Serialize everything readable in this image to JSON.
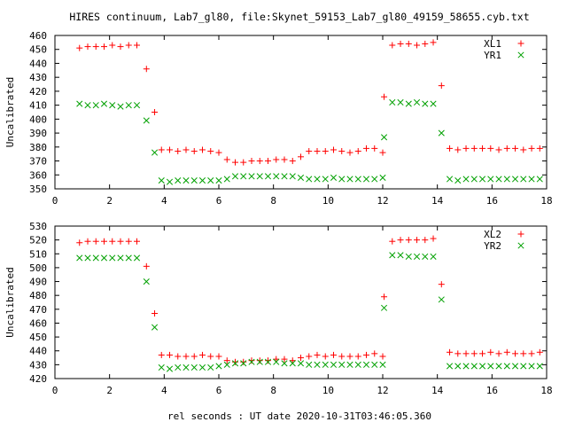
{
  "title": "HIRES continuum, Lab7_gl80, file:Skynet_59153_Lab7_gl80_49159_58655.cyb.txt",
  "xlabel": "rel seconds : UT date 2020-10-31T03:46:05.360",
  "colors": {
    "red_series": "#ff0000",
    "green_series": "#00a000",
    "axis": "#000000"
  },
  "chart_data": [
    {
      "type": "scatter",
      "ylabel": "Uncalibrated",
      "xlim": [
        0,
        18
      ],
      "ylim": [
        350,
        460
      ],
      "xticks": [
        0,
        2,
        4,
        6,
        8,
        10,
        12,
        14,
        16,
        18
      ],
      "yticks": [
        350,
        360,
        370,
        380,
        390,
        400,
        410,
        420,
        430,
        440,
        450,
        460
      ],
      "legend_position": "top-right",
      "series": [
        {
          "name": "XL1",
          "marker": "plus",
          "color": "#ff0000",
          "points": [
            [
              0.9,
              451
            ],
            [
              1.2,
              452
            ],
            [
              1.5,
              452
            ],
            [
              1.8,
              452
            ],
            [
              2.1,
              453
            ],
            [
              2.4,
              452
            ],
            [
              2.7,
              453
            ],
            [
              3.0,
              453
            ],
            [
              3.35,
              436
            ],
            [
              3.65,
              405
            ],
            [
              3.9,
              378
            ],
            [
              4.2,
              378
            ],
            [
              4.5,
              377
            ],
            [
              4.8,
              378
            ],
            [
              5.1,
              377
            ],
            [
              5.4,
              378
            ],
            [
              5.7,
              377
            ],
            [
              6.0,
              376
            ],
            [
              6.3,
              371
            ],
            [
              6.6,
              369
            ],
            [
              6.9,
              369
            ],
            [
              7.2,
              370
            ],
            [
              7.5,
              370
            ],
            [
              7.8,
              370
            ],
            [
              8.1,
              371
            ],
            [
              8.4,
              371
            ],
            [
              8.7,
              370
            ],
            [
              9.0,
              373
            ],
            [
              9.3,
              377
            ],
            [
              9.6,
              377
            ],
            [
              9.9,
              377
            ],
            [
              10.2,
              378
            ],
            [
              10.5,
              377
            ],
            [
              10.8,
              376
            ],
            [
              11.1,
              377
            ],
            [
              11.4,
              379
            ],
            [
              11.7,
              379
            ],
            [
              12.0,
              376
            ],
            [
              12.05,
              416
            ],
            [
              12.35,
              453
            ],
            [
              12.65,
              454
            ],
            [
              12.95,
              454
            ],
            [
              13.25,
              453
            ],
            [
              13.55,
              454
            ],
            [
              13.85,
              455
            ],
            [
              14.15,
              424
            ],
            [
              14.45,
              379
            ],
            [
              14.75,
              378
            ],
            [
              15.05,
              379
            ],
            [
              15.35,
              379
            ],
            [
              15.65,
              379
            ],
            [
              15.95,
              379
            ],
            [
              16.25,
              378
            ],
            [
              16.55,
              379
            ],
            [
              16.85,
              379
            ],
            [
              17.15,
              378
            ],
            [
              17.45,
              379
            ],
            [
              17.75,
              379
            ]
          ]
        },
        {
          "name": "YR1",
          "marker": "cross",
          "color": "#00a000",
          "points": [
            [
              0.9,
              411
            ],
            [
              1.2,
              410
            ],
            [
              1.5,
              410
            ],
            [
              1.8,
              411
            ],
            [
              2.1,
              410
            ],
            [
              2.4,
              409
            ],
            [
              2.7,
              410
            ],
            [
              3.0,
              410
            ],
            [
              3.35,
              399
            ],
            [
              3.65,
              376
            ],
            [
              3.9,
              356
            ],
            [
              4.2,
              355
            ],
            [
              4.5,
              356
            ],
            [
              4.8,
              356
            ],
            [
              5.1,
              356
            ],
            [
              5.4,
              356
            ],
            [
              5.7,
              356
            ],
            [
              6.0,
              356
            ],
            [
              6.3,
              357
            ],
            [
              6.6,
              359
            ],
            [
              6.9,
              359
            ],
            [
              7.2,
              359
            ],
            [
              7.5,
              359
            ],
            [
              7.8,
              359
            ],
            [
              8.1,
              359
            ],
            [
              8.4,
              359
            ],
            [
              8.7,
              359
            ],
            [
              9.0,
              358
            ],
            [
              9.3,
              357
            ],
            [
              9.6,
              357
            ],
            [
              9.9,
              357
            ],
            [
              10.2,
              358
            ],
            [
              10.5,
              357
            ],
            [
              10.8,
              357
            ],
            [
              11.1,
              357
            ],
            [
              11.4,
              357
            ],
            [
              11.7,
              357
            ],
            [
              12.0,
              358
            ],
            [
              12.05,
              387
            ],
            [
              12.35,
              412
            ],
            [
              12.65,
              412
            ],
            [
              12.95,
              411
            ],
            [
              13.25,
              412
            ],
            [
              13.55,
              411
            ],
            [
              13.85,
              411
            ],
            [
              14.15,
              390
            ],
            [
              14.45,
              357
            ],
            [
              14.75,
              356
            ],
            [
              15.05,
              357
            ],
            [
              15.35,
              357
            ],
            [
              15.65,
              357
            ],
            [
              15.95,
              357
            ],
            [
              16.25,
              357
            ],
            [
              16.55,
              357
            ],
            [
              16.85,
              357
            ],
            [
              17.15,
              357
            ],
            [
              17.45,
              357
            ],
            [
              17.75,
              357
            ]
          ]
        }
      ]
    },
    {
      "type": "scatter",
      "ylabel": "Uncalibrated",
      "xlim": [
        0,
        18
      ],
      "ylim": [
        420,
        530
      ],
      "xticks": [
        0,
        2,
        4,
        6,
        8,
        10,
        12,
        14,
        16,
        18
      ],
      "yticks": [
        420,
        430,
        440,
        450,
        460,
        470,
        480,
        490,
        500,
        510,
        520,
        530
      ],
      "legend_position": "top-right",
      "series": [
        {
          "name": "XL2",
          "marker": "plus",
          "color": "#ff0000",
          "points": [
            [
              0.9,
              518
            ],
            [
              1.2,
              519
            ],
            [
              1.5,
              519
            ],
            [
              1.8,
              519
            ],
            [
              2.1,
              519
            ],
            [
              2.4,
              519
            ],
            [
              2.7,
              519
            ],
            [
              3.0,
              519
            ],
            [
              3.35,
              501
            ],
            [
              3.65,
              467
            ],
            [
              3.9,
              437
            ],
            [
              4.2,
              437
            ],
            [
              4.5,
              436
            ],
            [
              4.8,
              436
            ],
            [
              5.1,
              436
            ],
            [
              5.4,
              437
            ],
            [
              5.7,
              436
            ],
            [
              6.0,
              436
            ],
            [
              6.3,
              433
            ],
            [
              6.6,
              432
            ],
            [
              6.9,
              432
            ],
            [
              7.2,
              433
            ],
            [
              7.5,
              433
            ],
            [
              7.8,
              433
            ],
            [
              8.1,
              434
            ],
            [
              8.4,
              434
            ],
            [
              8.7,
              433
            ],
            [
              9.0,
              435
            ],
            [
              9.3,
              436
            ],
            [
              9.6,
              437
            ],
            [
              9.9,
              436
            ],
            [
              10.2,
              437
            ],
            [
              10.5,
              436
            ],
            [
              10.8,
              436
            ],
            [
              11.1,
              436
            ],
            [
              11.4,
              437
            ],
            [
              11.7,
              438
            ],
            [
              12.0,
              436
            ],
            [
              12.05,
              479
            ],
            [
              12.35,
              519
            ],
            [
              12.65,
              520
            ],
            [
              12.95,
              520
            ],
            [
              13.25,
              520
            ],
            [
              13.55,
              520
            ],
            [
              13.85,
              521
            ],
            [
              14.15,
              488
            ],
            [
              14.45,
              439
            ],
            [
              14.75,
              438
            ],
            [
              15.05,
              438
            ],
            [
              15.35,
              438
            ],
            [
              15.65,
              438
            ],
            [
              15.95,
              439
            ],
            [
              16.25,
              438
            ],
            [
              16.55,
              439
            ],
            [
              16.85,
              438
            ],
            [
              17.15,
              438
            ],
            [
              17.45,
              438
            ],
            [
              17.75,
              439
            ]
          ]
        },
        {
          "name": "YR2",
          "marker": "cross",
          "color": "#00a000",
          "points": [
            [
              0.9,
              507
            ],
            [
              1.2,
              507
            ],
            [
              1.5,
              507
            ],
            [
              1.8,
              507
            ],
            [
              2.1,
              507
            ],
            [
              2.4,
              507
            ],
            [
              2.7,
              507
            ],
            [
              3.0,
              507
            ],
            [
              3.35,
              490
            ],
            [
              3.65,
              457
            ],
            [
              3.9,
              428
            ],
            [
              4.2,
              427
            ],
            [
              4.5,
              428
            ],
            [
              4.8,
              428
            ],
            [
              5.1,
              428
            ],
            [
              5.4,
              428
            ],
            [
              5.7,
              428
            ],
            [
              6.0,
              429
            ],
            [
              6.3,
              430
            ],
            [
              6.6,
              431
            ],
            [
              6.9,
              431
            ],
            [
              7.2,
              432
            ],
            [
              7.5,
              432
            ],
            [
              7.8,
              432
            ],
            [
              8.1,
              432
            ],
            [
              8.4,
              431
            ],
            [
              8.7,
              431
            ],
            [
              9.0,
              431
            ],
            [
              9.3,
              430
            ],
            [
              9.6,
              430
            ],
            [
              9.9,
              430
            ],
            [
              10.2,
              430
            ],
            [
              10.5,
              430
            ],
            [
              10.8,
              430
            ],
            [
              11.1,
              430
            ],
            [
              11.4,
              430
            ],
            [
              11.7,
              430
            ],
            [
              12.0,
              430
            ],
            [
              12.05,
              471
            ],
            [
              12.35,
              509
            ],
            [
              12.65,
              509
            ],
            [
              12.95,
              508
            ],
            [
              13.25,
              508
            ],
            [
              13.55,
              508
            ],
            [
              13.85,
              508
            ],
            [
              14.15,
              477
            ],
            [
              14.45,
              429
            ],
            [
              14.75,
              429
            ],
            [
              15.05,
              429
            ],
            [
              15.35,
              429
            ],
            [
              15.65,
              429
            ],
            [
              15.95,
              429
            ],
            [
              16.25,
              429
            ],
            [
              16.55,
              429
            ],
            [
              16.85,
              429
            ],
            [
              17.15,
              429
            ],
            [
              17.45,
              429
            ],
            [
              17.75,
              429
            ]
          ]
        }
      ]
    }
  ]
}
